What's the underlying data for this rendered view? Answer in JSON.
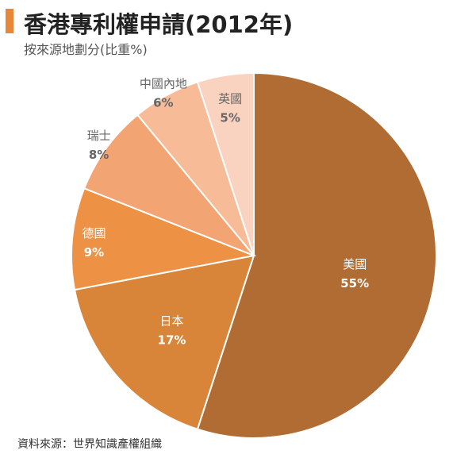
{
  "title": "香港專利權申請(2012年)",
  "subtitle": "按來源地劃分(比重%)",
  "source": "資料來源：世界知識產權組織",
  "colors": {
    "accent": "#e8873a"
  },
  "chart_data": {
    "type": "pie",
    "title": "香港專利權申請(2012年)",
    "subtitle": "按來源地劃分(比重%)",
    "unit": "%",
    "slices": [
      {
        "name": "美國",
        "value": 55,
        "label": "55%",
        "color": "#b06c32"
      },
      {
        "name": "日本",
        "value": 17,
        "label": "17%",
        "color": "#d98539"
      },
      {
        "name": "德國",
        "value": 9,
        "label": "9%",
        "color": "#ed9145"
      },
      {
        "name": "瑞士",
        "value": 8,
        "label": "8%",
        "color": "#f3a473"
      },
      {
        "name": "中國內地",
        "value": 6,
        "label": "6%",
        "color": "#f7bb97"
      },
      {
        "name": "英國",
        "value": 5,
        "label": "5%",
        "color": "#f9d3c0"
      }
    ]
  }
}
